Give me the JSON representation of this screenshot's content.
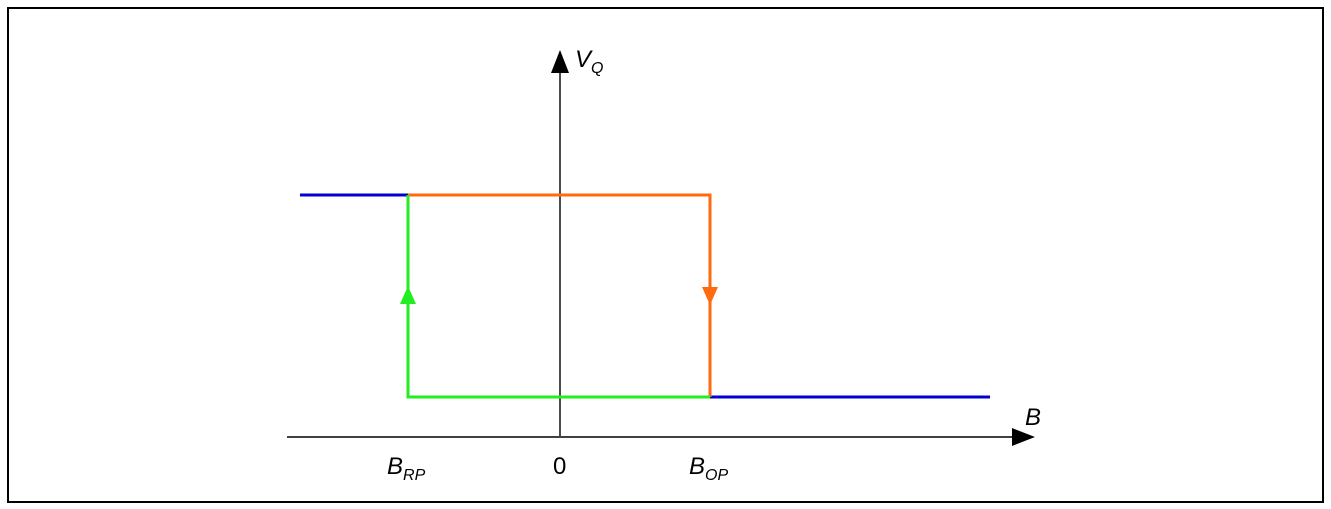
{
  "diagram": {
    "y_axis_label": {
      "main": "V",
      "sub": "Q"
    },
    "x_axis_label": "B",
    "origin_label": "0",
    "b_rp_label": {
      "main": "B",
      "sub": "RP"
    },
    "b_op_label": {
      "main": "B",
      "sub": "OP"
    },
    "colors": {
      "frame": "#000000",
      "axes": "#000000",
      "saturated_segments": "#0000d0",
      "rising_path": "#22ee22",
      "falling_path": "#ff6a0f"
    }
  }
}
